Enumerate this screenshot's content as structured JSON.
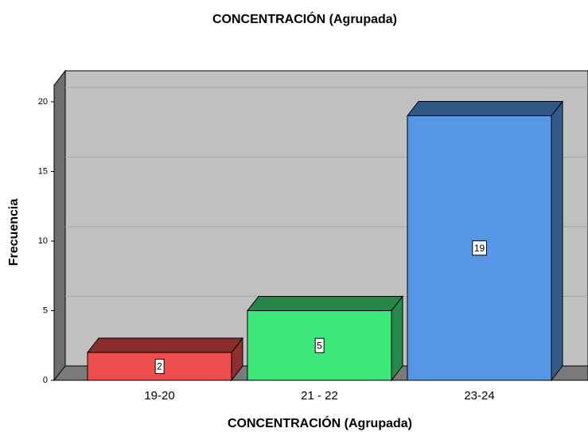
{
  "chart_data": {
    "type": "bar",
    "title": "CONCENTRACIÓN (Agrupada)",
    "x_label": "CONCENTRACIÓN (Agrupada)",
    "y_label": "Frecuencia",
    "categories": [
      "19-20",
      "21 - 22",
      "23-24"
    ],
    "values": [
      2,
      5,
      19
    ],
    "colors": [
      "#ee4d4d",
      "#3fe87b",
      "#5596e6"
    ],
    "ylim": [
      0,
      21.2
    ],
    "yticks": [
      0,
      5,
      10,
      15,
      20
    ],
    "grid": true
  }
}
